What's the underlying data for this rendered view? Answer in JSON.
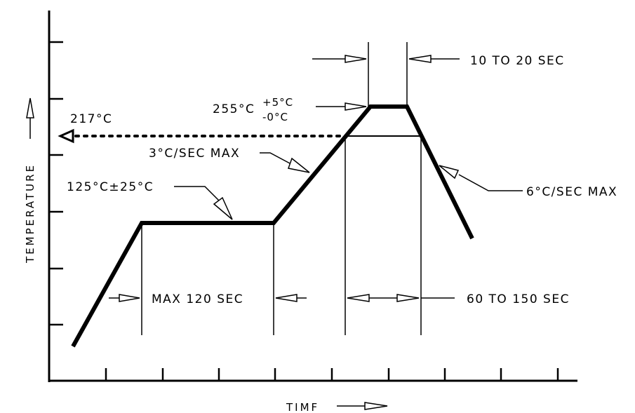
{
  "axes": {
    "y_label": "TEMPERATURE",
    "x_label": "TIMF"
  },
  "annotations": {
    "peak_dwell": "10 TO 20 SEC",
    "peak_temp": "255°C",
    "peak_tol_plus": "+5°C",
    "peak_tol_minus": "-0°C",
    "liquidus_temp": "217°C",
    "ramp_up_rate": "3°C/SEC MAX",
    "soak_temp": "125°C±25°C",
    "cool_down_rate": "6°C/SEC MAX",
    "soak_time": "MAX 120 SEC",
    "time_above_liquidus": "60 TO 150 SEC"
  },
  "colors": {
    "line": "#000000",
    "background": "#ffffff"
  }
}
